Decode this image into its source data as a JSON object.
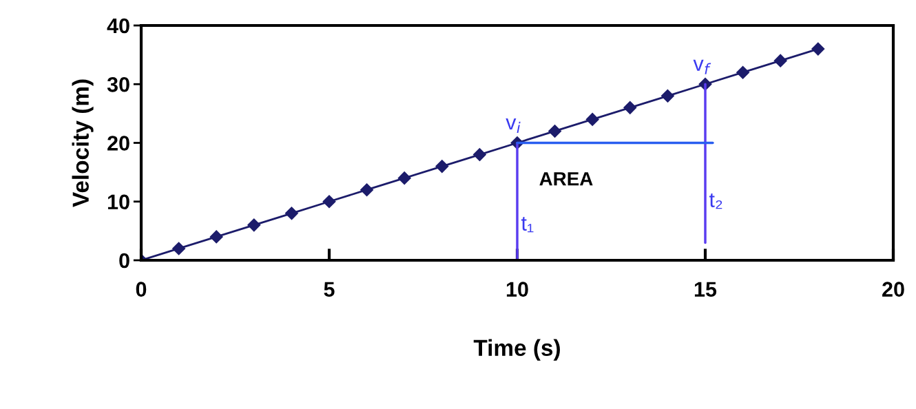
{
  "chart_data": {
    "type": "line",
    "xlabel": "Time (s)",
    "ylabel": "Velocity (m)",
    "xlim": [
      0,
      20
    ],
    "ylim": [
      0,
      40
    ],
    "xticks": [
      0,
      5,
      10,
      15,
      20
    ],
    "yticks": [
      0,
      10,
      20,
      30,
      40
    ],
    "grid": false,
    "legend": false,
    "series": [
      {
        "color": "#1c1c6b",
        "marker": "diamond",
        "x": [
          0,
          1,
          2,
          3,
          4,
          5,
          6,
          7,
          8,
          9,
          10,
          11,
          12,
          13,
          14,
          15,
          16,
          17,
          18
        ],
        "values": [
          0,
          2,
          4,
          6,
          8,
          10,
          12,
          14,
          16,
          18,
          20,
          22,
          24,
          26,
          28,
          30,
          32,
          34,
          36
        ]
      },
      {
        "color": "#5a3cf0",
        "marker": "none",
        "x": [
          10,
          10
        ],
        "values": [
          0,
          20
        ]
      },
      {
        "color": "#5a3cf0",
        "marker": "none",
        "x": [
          15,
          15
        ],
        "values": [
          3,
          30
        ]
      },
      {
        "color": "#2a5ef0",
        "marker": "none",
        "x": [
          10,
          15.2
        ],
        "values": [
          20,
          20
        ]
      }
    ],
    "annotations": [
      "v$_{i}$",
      "v$_{f}$",
      "AREA",
      "t₁",
      "t₂"
    ]
  }
}
